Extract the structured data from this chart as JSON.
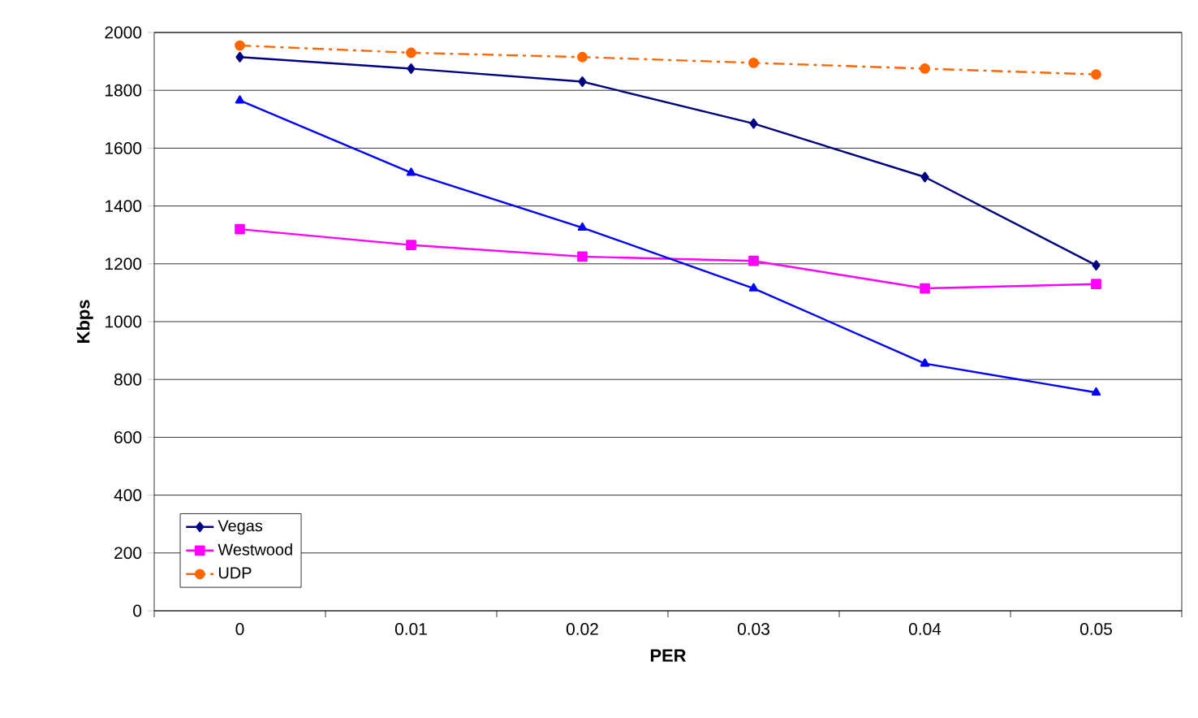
{
  "chart_data": {
    "type": "line",
    "xlabel": "PER",
    "ylabel": "Kbps",
    "categories": [
      "0",
      "0.01",
      "0.02",
      "0.03",
      "0.04",
      "0.05"
    ],
    "series": [
      {
        "name": "Vegas",
        "color": "#000080",
        "marker": "diamond",
        "line_style": "solid",
        "values": [
          1915,
          1875,
          1830,
          1685,
          1500,
          1195
        ]
      },
      {
        "name": "Westwood",
        "color": "#ff00ff",
        "marker": "square",
        "line_style": "solid",
        "values": [
          1320,
          1265,
          1225,
          1210,
          1115,
          1130
        ]
      },
      {
        "color": "#0000ff",
        "marker": "triangle",
        "line_style": "solid",
        "values": [
          1765,
          1515,
          1325,
          1115,
          855,
          755
        ]
      },
      {
        "name": "UDP",
        "color": "#ff6600",
        "marker": "circle",
        "line_style": "dashed",
        "values": [
          1955,
          1930,
          1915,
          1895,
          1875,
          1855
        ]
      }
    ],
    "ylim": [
      0,
      2000
    ],
    "yticks": [
      0,
      200,
      400,
      600,
      800,
      1000,
      1200,
      1400,
      1600,
      1800,
      2000
    ],
    "grid": "y",
    "legend": "bottom left"
  }
}
